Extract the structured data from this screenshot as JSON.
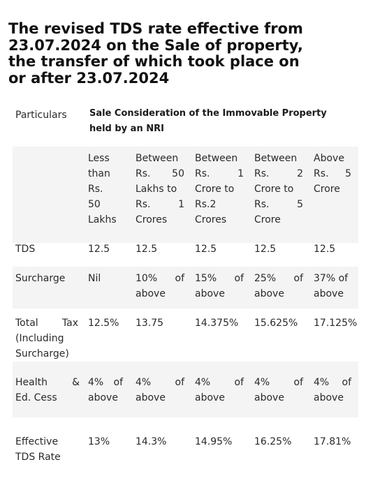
{
  "title": {
    "line1": "The revised TDS rate effective from",
    "line2": "23.07.2024 on the Sale of property,",
    "line3": "the transfer of which took place on",
    "line4": "or after 23.07.2024"
  },
  "table": {
    "particulars_header": "Particulars",
    "sale_header_line1": "Sale Consideration of the Immovable Property",
    "sale_header_line2": "held by an NRI",
    "columns": [
      {
        "lines": [
          "Less",
          "than",
          "Rs.",
          "50",
          "Lakhs"
        ]
      },
      {
        "lines": [
          "Between",
          "Rs.      50",
          "Lakhs to",
          "Rs.        1",
          "Crores"
        ]
      },
      {
        "lines": [
          "Between",
          "Rs.        1",
          "Crore to",
          "Rs.2",
          "Crores"
        ]
      },
      {
        "lines": [
          "Between",
          "Rs.        2",
          "Crore to",
          "Rs.        5",
          "Crore"
        ]
      },
      {
        "lines": [
          "Above",
          "Rs.      5",
          "Crore"
        ]
      }
    ],
    "rows": [
      {
        "label": [
          "TDS"
        ],
        "cells": [
          [
            "12.5"
          ],
          [
            "12.5"
          ],
          [
            "12.5"
          ],
          [
            "12.5"
          ],
          [
            "12.5"
          ]
        ]
      },
      {
        "label": [
          "Surcharge"
        ],
        "cells": [
          [
            "Nil"
          ],
          [
            "10%     of",
            "above"
          ],
          [
            "15%     of",
            "above"
          ],
          [
            "25%     of",
            "above"
          ],
          [
            "37% of",
            "above"
          ]
        ]
      },
      {
        "label": [
          "Total     Tax",
          "(Including",
          "Surcharge)"
        ],
        "cells": [
          [
            "12.5%"
          ],
          [
            "13.75"
          ],
          [
            "14.375%"
          ],
          [
            "15.625%"
          ],
          [
            "17.125%"
          ]
        ]
      },
      {
        "label": [
          "Health     &",
          "Ed. Cess"
        ],
        "cells": [
          [
            "4%  of",
            "above"
          ],
          [
            "4%        of",
            "above"
          ],
          [
            "4%        of",
            "above"
          ],
          [
            "4%        of",
            "above"
          ],
          [
            "4%  of",
            "above"
          ]
        ]
      },
      {
        "label": [
          "Effective",
          "TDS Rate"
        ],
        "cells": [
          [
            "13%"
          ],
          [
            "14.3%"
          ],
          [
            "14.95%"
          ],
          [
            "16.25%"
          ],
          [
            "17.81%"
          ]
        ]
      }
    ]
  }
}
